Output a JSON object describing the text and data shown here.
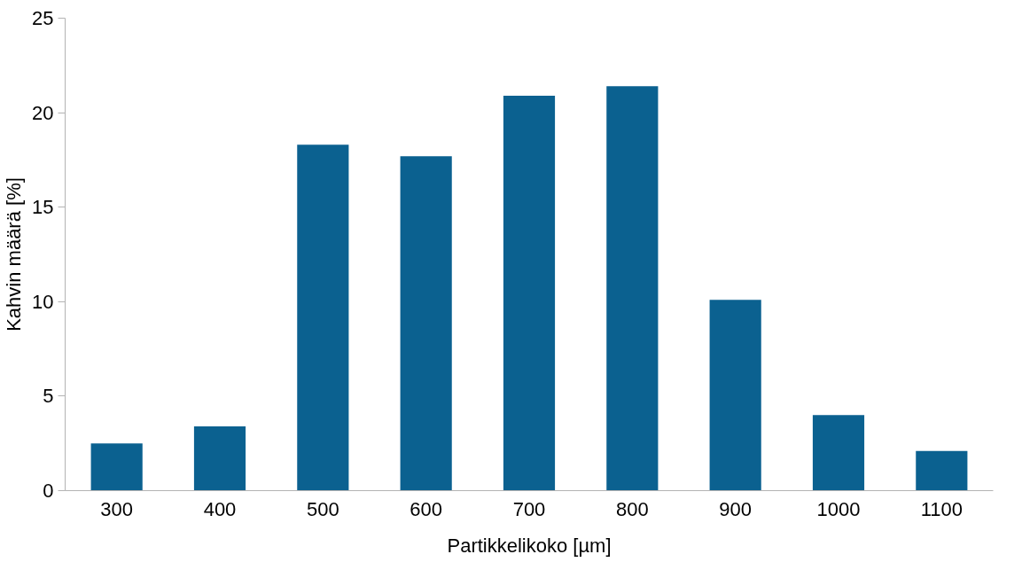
{
  "chart_data": {
    "type": "bar",
    "xlabel": "Partikkelikoko [µm]",
    "ylabel": "Kahvin määrä [%]",
    "categories": [
      "300",
      "400",
      "500",
      "600",
      "700",
      "800",
      "900",
      "1000",
      "1100"
    ],
    "values": [
      2.5,
      3.4,
      18.3,
      17.7,
      20.9,
      21.4,
      10.1,
      4.0,
      2.1
    ],
    "color": "#0b6190",
    "ylim": [
      0,
      25
    ],
    "yticks": [
      0,
      5,
      10,
      15,
      20,
      25
    ],
    "grid": false
  }
}
